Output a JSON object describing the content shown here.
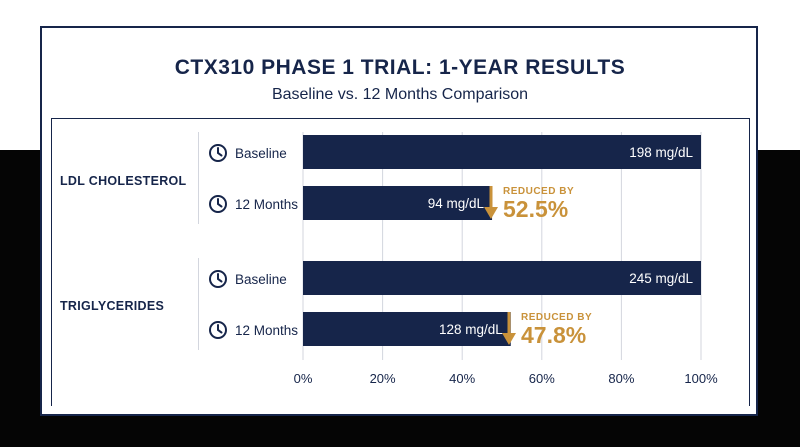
{
  "title": "CTX310 PHASE 1 TRIAL: 1-YEAR RESULTS",
  "subtitle": "Baseline vs. 12 Months Comparison",
  "colors": {
    "navy": "#16254a",
    "gold": "#c9923a",
    "grid": "#d3d6de"
  },
  "chart_data": {
    "type": "bar",
    "orientation": "horizontal",
    "title": "CTX310 PHASE 1 TRIAL: 1-YEAR RESULTS",
    "subtitle": "Baseline vs. 12 Months Comparison",
    "x_ticks": [
      "0%",
      "20%",
      "40%",
      "60%",
      "80%",
      "100%"
    ],
    "xlim": [
      0,
      100
    ],
    "grid": true,
    "groups": [
      {
        "name": "LDL CHOLESTEROL",
        "rows": [
          {
            "label": "Baseline",
            "percent": 100,
            "value_label": "198 mg/dL"
          },
          {
            "label": "12 Months",
            "percent": 47.5,
            "value_label": "94 mg/dL"
          }
        ],
        "reduction_label": "REDUCED BY",
        "reduction_value": "52.5%"
      },
      {
        "name": "TRIGLYCERIDES",
        "rows": [
          {
            "label": "Baseline",
            "percent": 100,
            "value_label": "245 mg/dL"
          },
          {
            "label": "12 Months",
            "percent": 52.2,
            "value_label": "128 mg/dL"
          }
        ],
        "reduction_label": "REDUCED BY",
        "reduction_value": "47.8%"
      }
    ]
  }
}
